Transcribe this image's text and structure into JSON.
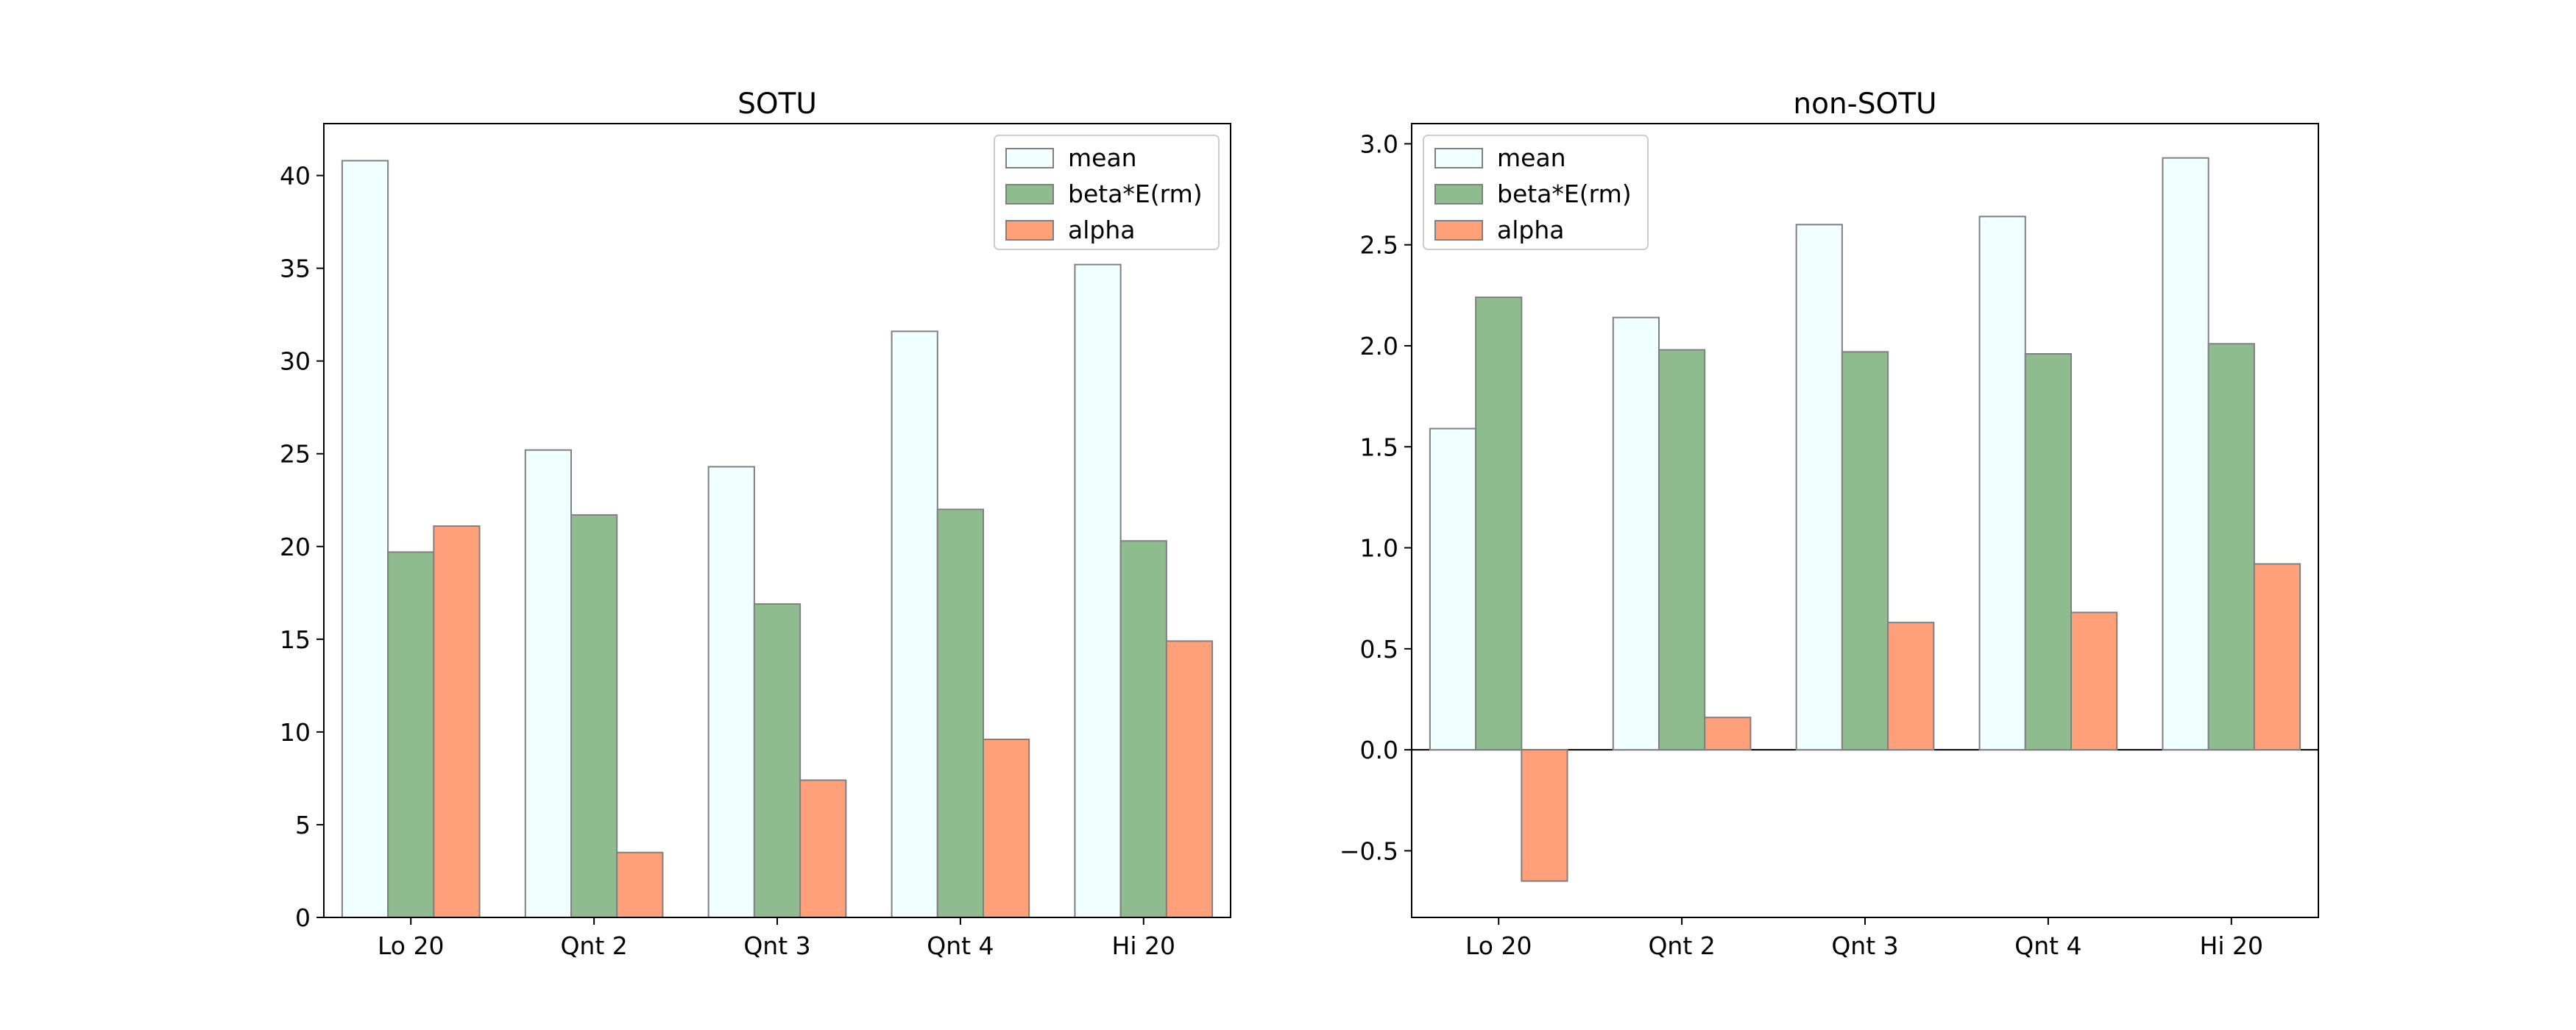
{
  "chart_data": [
    {
      "type": "bar",
      "title": "SOTU",
      "xlabel": "",
      "ylabel": "",
      "categories": [
        "Lo 20",
        "Qnt 2",
        "Qnt 3",
        "Qnt 4",
        "Hi 20"
      ],
      "series": [
        {
          "name": "mean",
          "values": [
            40.8,
            25.2,
            24.3,
            31.6,
            35.2
          ],
          "color": "#f0ffff"
        },
        {
          "name": "beta*E(rm)",
          "values": [
            19.7,
            21.7,
            16.9,
            22.0,
            20.3
          ],
          "color": "#8fbc8f"
        },
        {
          "name": "alpha",
          "values": [
            21.1,
            3.5,
            7.4,
            9.6,
            14.9
          ],
          "color": "#ffa07a"
        }
      ],
      "ylim": [
        0,
        42.8
      ],
      "yticks": [
        0,
        5,
        10,
        15,
        20,
        25,
        30,
        35,
        40
      ],
      "ytick_labels": [
        "0",
        "5",
        "10",
        "15",
        "20",
        "25",
        "30",
        "35",
        "40"
      ],
      "grid": false,
      "legend": "upper right"
    },
    {
      "type": "bar",
      "title": "non-SOTU",
      "xlabel": "",
      "ylabel": "",
      "categories": [
        "Lo 20",
        "Qnt 2",
        "Qnt 3",
        "Qnt 4",
        "Hi 20"
      ],
      "series": [
        {
          "name": "mean",
          "values": [
            1.59,
            2.14,
            2.6,
            2.64,
            2.93
          ],
          "color": "#f0ffff"
        },
        {
          "name": "beta*E(rm)",
          "values": [
            2.24,
            1.98,
            1.97,
            1.96,
            2.01
          ],
          "color": "#8fbc8f"
        },
        {
          "name": "alpha",
          "values": [
            -0.65,
            0.16,
            0.63,
            0.68,
            0.92
          ],
          "color": "#ffa07a"
        }
      ],
      "ylim": [
        -0.83,
        3.1
      ],
      "yticks": [
        -0.5,
        0.0,
        0.5,
        1.0,
        1.5,
        2.0,
        2.5,
        3.0
      ],
      "ytick_labels": [
        "−0.5",
        "0.0",
        "0.5",
        "1.0",
        "1.5",
        "2.0",
        "2.5",
        "3.0"
      ],
      "zero_line": true,
      "grid": false,
      "legend": "upper left"
    }
  ]
}
